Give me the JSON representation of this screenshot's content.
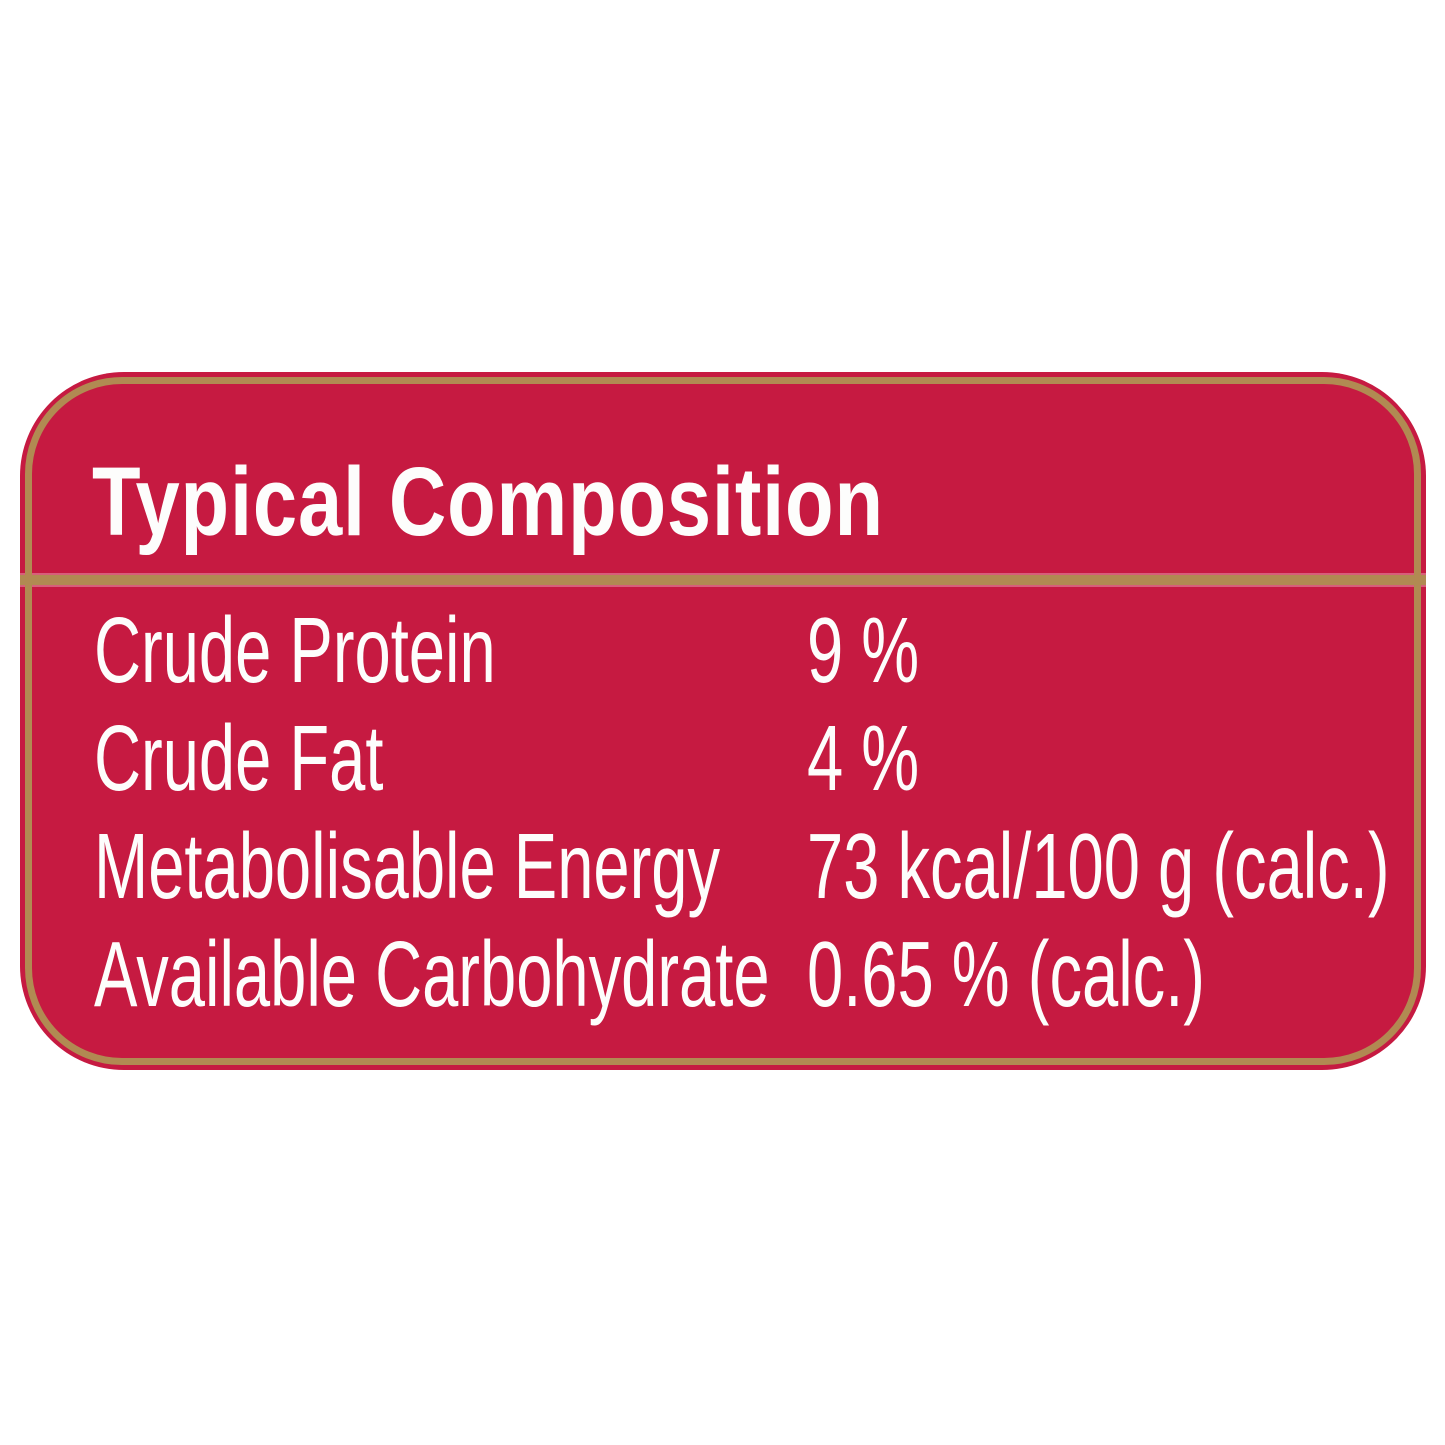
{
  "panel": {
    "title": "Typical Composition",
    "rows": [
      {
        "label": "Crude Protein",
        "value": "9 %"
      },
      {
        "label": "Crude Fat",
        "value": "4 %"
      },
      {
        "label": "Metabolisable Energy",
        "value": "73 kcal/100 g (calc.)"
      },
      {
        "label": "Available Carbohydrate",
        "value": "0.65 % (calc.)"
      }
    ]
  },
  "colors": {
    "page_background": "#ffffff",
    "panel_red": "#c61a41",
    "border_gold": "#b18a52",
    "text_white": "#fdfdfc"
  }
}
